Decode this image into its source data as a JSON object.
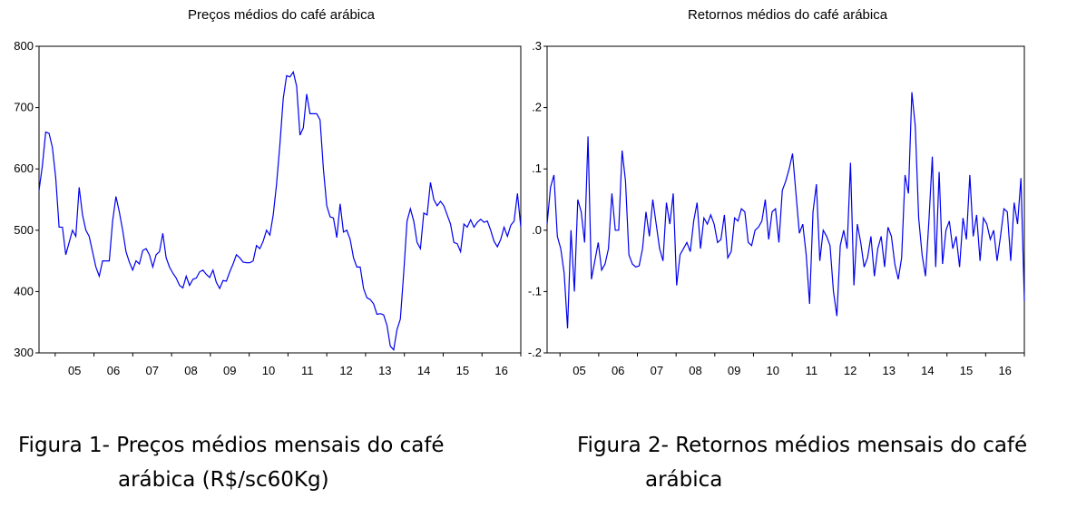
{
  "chart_data": [
    {
      "type": "line",
      "title": "Preços médios do café arábica",
      "xlabel": "",
      "ylabel": "",
      "x_start": "2004-08",
      "x_end": "2016-12",
      "x_tick_labels": [
        "05",
        "06",
        "07",
        "08",
        "09",
        "10",
        "11",
        "12",
        "13",
        "14",
        "15",
        "16"
      ],
      "ylim": [
        300,
        800
      ],
      "y_ticks": [
        300,
        400,
        500,
        600,
        700,
        800
      ],
      "y_tick_labels": [
        "300",
        "400",
        "500",
        "600",
        "700",
        "800"
      ],
      "grid": false,
      "color": "#0000ee",
      "series": [
        {
          "values": [
            565,
            605,
            660,
            658,
            635,
            585,
            505,
            505,
            460,
            480,
            500,
            490,
            570,
            525,
            500,
            490,
            465,
            440,
            425,
            450,
            450,
            450,
            515,
            555,
            530,
            500,
            465,
            448,
            435,
            450,
            445,
            467,
            470,
            460,
            440,
            460,
            465,
            495,
            455,
            440,
            430,
            422,
            410,
            406,
            425,
            410,
            420,
            422,
            432,
            435,
            428,
            423,
            435,
            415,
            405,
            418,
            417,
            432,
            445,
            460,
            455,
            448,
            447,
            447,
            450,
            475,
            470,
            482,
            500,
            492,
            525,
            575,
            640,
            715,
            752,
            750,
            758,
            735,
            655,
            667,
            722,
            690,
            690,
            690,
            680,
            600,
            540,
            522,
            520,
            488,
            543,
            497,
            500,
            485,
            455,
            440,
            440,
            405,
            390,
            387,
            380,
            363,
            364,
            362,
            345,
            311,
            305,
            338,
            355,
            430,
            515,
            535,
            515,
            480,
            470,
            528,
            525,
            578,
            550,
            540,
            547,
            540,
            525,
            510,
            480,
            478,
            465,
            510,
            505,
            517,
            505,
            513,
            518,
            513,
            515,
            500,
            482,
            473,
            485,
            505,
            490,
            508,
            515,
            560,
            505
          ]
        }
      ]
    },
    {
      "type": "line",
      "title": "Retornos  médios do café arábica",
      "xlabel": "",
      "ylabel": "",
      "x_start": "2004-09",
      "x_end": "2016-12",
      "x_tick_labels": [
        "05",
        "06",
        "07",
        "08",
        "09",
        "10",
        "11",
        "12",
        "13",
        "14",
        "15",
        "16"
      ],
      "ylim": [
        -0.2,
        0.3
      ],
      "y_ticks": [
        -0.2,
        -0.1,
        0.0,
        0.1,
        0.2,
        0.3
      ],
      "y_tick_labels": [
        "-.2",
        "-.1",
        ".0",
        ".1",
        ".2",
        ".3"
      ],
      "grid": false,
      "color": "#0000ee",
      "series": [
        {
          "values": [
            0.01,
            0.07,
            0.09,
            -0.01,
            -0.03,
            -0.07,
            -0.16,
            0.0,
            -0.1,
            0.05,
            0.03,
            -0.02,
            0.153,
            -0.08,
            -0.05,
            -0.02,
            -0.065,
            -0.055,
            -0.03,
            0.06,
            0.0,
            0.0,
            0.13,
            0.08,
            -0.04,
            -0.055,
            -0.06,
            -0.058,
            -0.03,
            0.03,
            -0.01,
            0.05,
            0.01,
            -0.03,
            -0.05,
            0.045,
            0.01,
            0.06,
            -0.09,
            -0.04,
            -0.03,
            -0.02,
            -0.035,
            0.015,
            0.045,
            -0.03,
            0.02,
            0.01,
            0.025,
            0.01,
            -0.02,
            -0.015,
            0.025,
            -0.045,
            -0.035,
            0.02,
            0.015,
            0.035,
            0.03,
            -0.02,
            -0.025,
            0.0,
            0.005,
            0.015,
            0.05,
            -0.015,
            0.03,
            0.035,
            -0.02,
            0.065,
            0.08,
            0.1,
            0.125,
            0.06,
            -0.005,
            0.01,
            -0.04,
            -0.12,
            0.03,
            0.075,
            -0.05,
            0.0,
            -0.01,
            -0.025,
            -0.1,
            -0.14,
            -0.025,
            0.0,
            -0.03,
            0.11,
            -0.09,
            0.01,
            -0.02,
            -0.06,
            -0.045,
            -0.01,
            -0.075,
            -0.03,
            -0.01,
            -0.06,
            0.005,
            -0.01,
            -0.055,
            -0.08,
            -0.045,
            0.09,
            0.06,
            0.225,
            0.17,
            0.02,
            -0.04,
            -0.075,
            0.015,
            0.12,
            -0.06,
            0.095,
            -0.055,
            0.0,
            0.015,
            -0.03,
            -0.01,
            -0.06,
            0.02,
            -0.015,
            0.09,
            -0.01,
            0.025,
            -0.05,
            0.02,
            0.01,
            -0.015,
            0.0,
            -0.05,
            -0.01,
            0.035,
            0.03,
            -0.05,
            0.045,
            0.01,
            0.085,
            -0.115
          ]
        }
      ]
    }
  ],
  "captions": {
    "fig1_line1": "Figura 1- Preços médios mensais do café",
    "fig1_line2": "arábica (R$/sc60Kg)",
    "fig2_line1": "Figura 2- Retornos médios mensais do café",
    "fig2_line2": "arábica"
  }
}
